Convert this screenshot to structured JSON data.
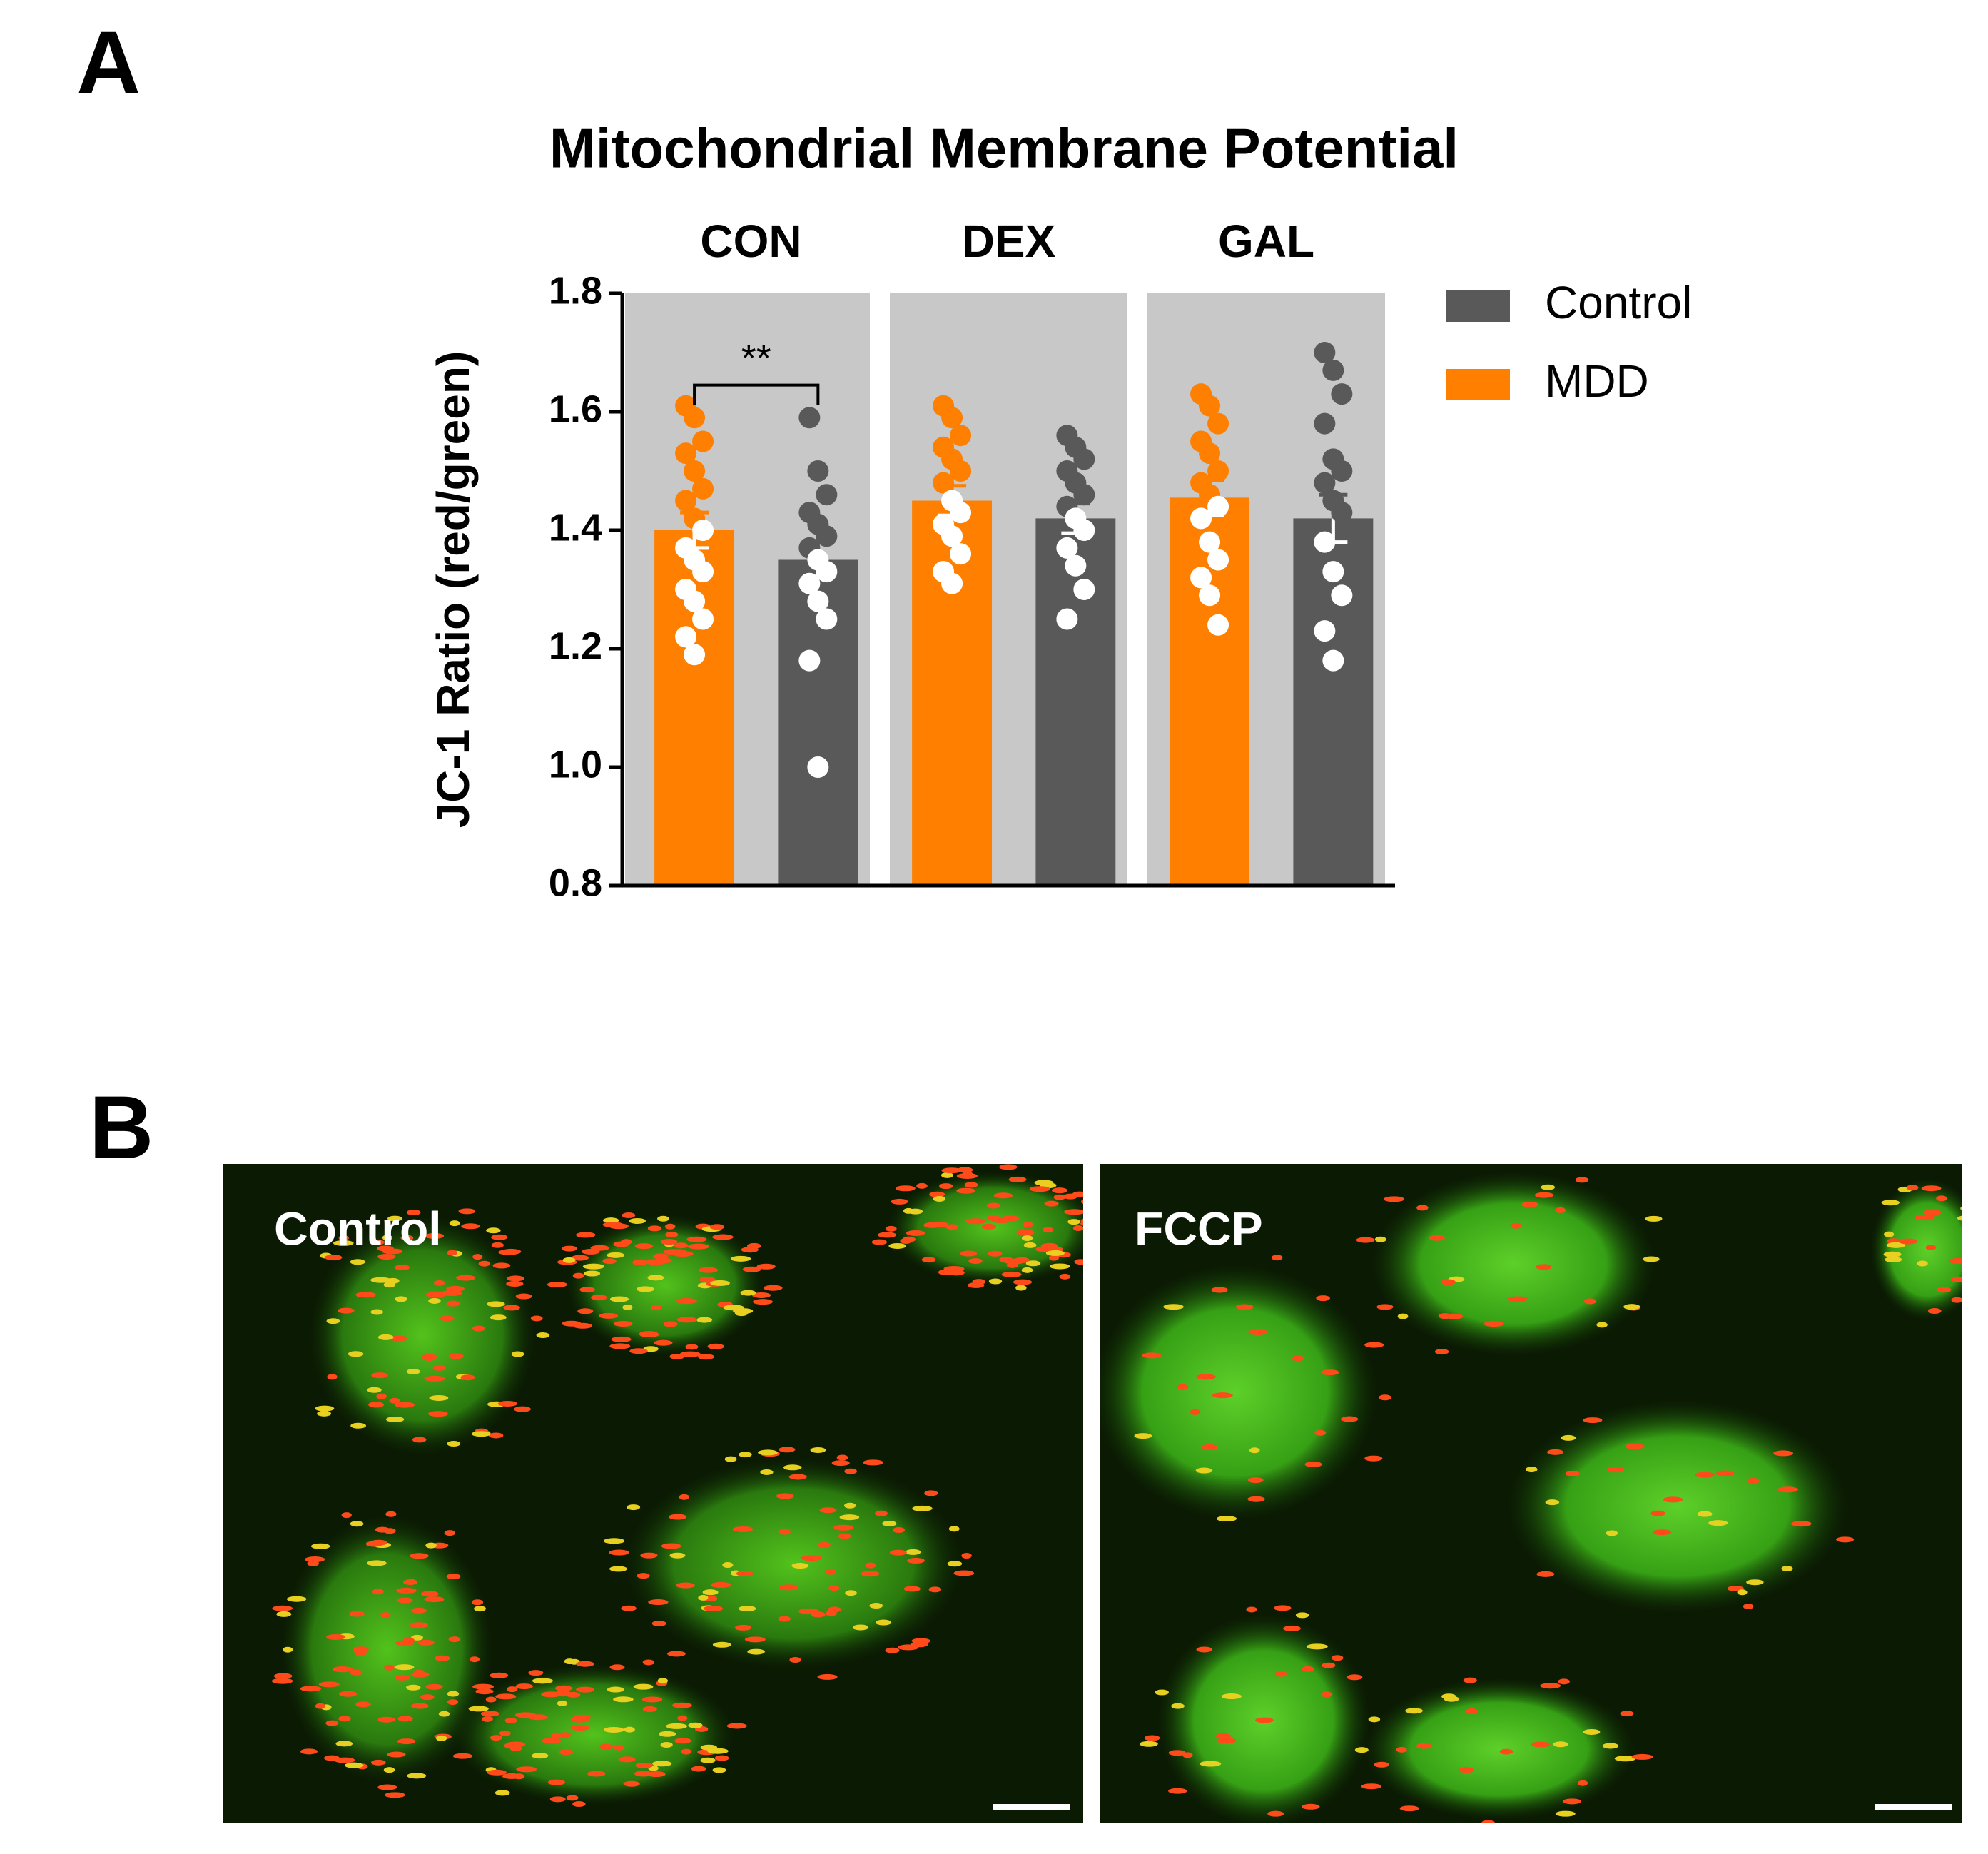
{
  "panel_labels": [
    "A",
    "B"
  ],
  "chart_data": {
    "type": "bar",
    "title": "Mitochondrial  Membrane Potential",
    "y_label": "JC-1 Ratio (red/green)",
    "categories": [
      "CON",
      "DEX",
      "GAL"
    ],
    "series": [
      {
        "name": "Control",
        "color": "#595959",
        "values": [
          1.35,
          1.42,
          1.42
        ],
        "errors": [
          0.03,
          0.025,
          0.04
        ],
        "points": [
          [
            1.59,
            1.5,
            1.46,
            1.43,
            1.41,
            1.39,
            1.37,
            1.35,
            1.33,
            1.31,
            1.28,
            1.25,
            1.18,
            1.0
          ],
          [
            1.56,
            1.54,
            1.52,
            1.5,
            1.48,
            1.46,
            1.44,
            1.42,
            1.4,
            1.37,
            1.34,
            1.3,
            1.25
          ],
          [
            1.7,
            1.67,
            1.63,
            1.58,
            1.52,
            1.5,
            1.48,
            1.45,
            1.43,
            1.38,
            1.33,
            1.29,
            1.23,
            1.18
          ]
        ]
      },
      {
        "name": "MDD",
        "color": "#ff8000",
        "values": [
          1.4,
          1.45,
          1.455
        ],
        "errors": [
          0.03,
          0.025,
          0.03
        ],
        "points": [
          [
            1.61,
            1.59,
            1.55,
            1.53,
            1.5,
            1.47,
            1.45,
            1.42,
            1.4,
            1.37,
            1.35,
            1.33,
            1.3,
            1.28,
            1.25,
            1.22,
            1.19
          ],
          [
            1.61,
            1.59,
            1.56,
            1.54,
            1.52,
            1.5,
            1.48,
            1.45,
            1.43,
            1.41,
            1.39,
            1.36,
            1.33,
            1.31
          ],
          [
            1.63,
            1.61,
            1.58,
            1.55,
            1.53,
            1.5,
            1.48,
            1.46,
            1.44,
            1.42,
            1.38,
            1.35,
            1.32,
            1.29,
            1.24
          ]
        ]
      }
    ],
    "ylim": [
      0.8,
      1.8
    ],
    "yticks": [
      {
        "value": 0.8,
        "label": "0.8"
      },
      {
        "value": 1.0,
        "label": "1.0"
      },
      {
        "value": 1.2,
        "label": "1.2"
      },
      {
        "value": 1.4,
        "label": "1.4"
      },
      {
        "value": 1.6,
        "label": "1.6"
      },
      {
        "value": 1.8,
        "label": "1.8"
      }
    ],
    "annotations": [
      {
        "text": "**"
      }
    ],
    "legend": "right"
  },
  "micrographs": [
    "Control",
    "FCCP"
  ]
}
